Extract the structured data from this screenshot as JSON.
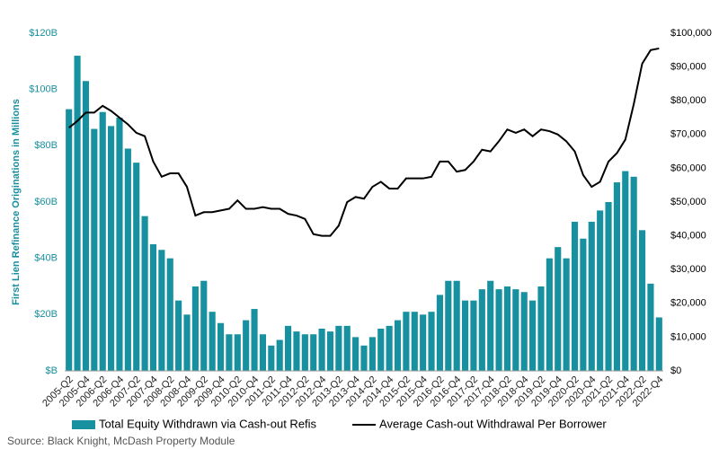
{
  "chart_data": {
    "type": "bar_line",
    "y_label": "First Lien Refinance Originations in Millions",
    "source": "Source: Black Knight, McDash Property Module",
    "categories": [
      "2005-Q2",
      null,
      "2005-Q4",
      null,
      "2006-Q2",
      null,
      "2006-Q4",
      null,
      "2007-Q2",
      null,
      "2007-Q4",
      null,
      "2008-Q2",
      null,
      "2008-Q4",
      null,
      "2009-Q2",
      null,
      "2009-Q4",
      null,
      "2010-Q2",
      null,
      "2010-Q4",
      null,
      "2011-Q2",
      null,
      "2011-Q4",
      null,
      "2012-Q2",
      null,
      "2012-Q4",
      null,
      "2013-Q2",
      null,
      "2013-Q4",
      null,
      "2014-Q2",
      null,
      "2014-Q4",
      null,
      "2015-Q2",
      null,
      "2015-Q4",
      null,
      "2016-Q2",
      null,
      "2016-Q4",
      null,
      "2017-Q2",
      null,
      "2017-Q4",
      null,
      "2018-Q2",
      null,
      "2018-Q4",
      null,
      "2019-Q2",
      null,
      "2019-Q4",
      null,
      "2020-Q2",
      null,
      "2020-Q4",
      null,
      "2021-Q2",
      null,
      "2021-Q4",
      null,
      "2022-Q2",
      null,
      "2022-Q4"
    ],
    "series": [
      {
        "name": "Total Equity Withdrawn via Cash-out Refis",
        "type": "bar",
        "color": "#17909f",
        "values": [
          93,
          112,
          103,
          86,
          92,
          87,
          90,
          79,
          74,
          55,
          45,
          43,
          40,
          25,
          20,
          30,
          32,
          21,
          17,
          13,
          13,
          18,
          22,
          13,
          9,
          11,
          16,
          14,
          13,
          13,
          15,
          14,
          16,
          16,
          12,
          9,
          12,
          15,
          16,
          18,
          21,
          21,
          20,
          21,
          27,
          32,
          32,
          25,
          25,
          29,
          32,
          29,
          30,
          29,
          28,
          25,
          30,
          40,
          44,
          40,
          53,
          47,
          53,
          57,
          60,
          67,
          71,
          69,
          50,
          31,
          19
        ]
      },
      {
        "name": "Average Cash-out Withdrawal Per Borrower",
        "type": "line",
        "axis": "y2",
        "color": "#000000",
        "values": [
          72000,
          74000,
          76500,
          76500,
          78500,
          77000,
          75000,
          73000,
          70500,
          69500,
          62000,
          57500,
          58500,
          58500,
          54500,
          46000,
          47000,
          47000,
          47500,
          48000,
          50500,
          48000,
          48000,
          48500,
          48000,
          48000,
          46500,
          46000,
          45000,
          40500,
          40000,
          40000,
          43000,
          50000,
          51500,
          51000,
          54500,
          56000,
          54000,
          54000,
          57000,
          57000,
          57000,
          57500,
          62000,
          62000,
          59000,
          59500,
          62000,
          65500,
          65000,
          68000,
          71500,
          70500,
          71500,
          69500,
          71500,
          71000,
          70000,
          68000,
          65000,
          58000,
          54500,
          56000,
          62000,
          64500,
          68500,
          79000,
          91000,
          95000,
          95500
        ]
      }
    ],
    "ylim": [
      0,
      120
    ],
    "yticks": [
      {
        "value": 0,
        "label": "$B"
      },
      {
        "value": 20,
        "label": "$20B"
      },
      {
        "value": 40,
        "label": "$40B"
      },
      {
        "value": 60,
        "label": "$60B"
      },
      {
        "value": 80,
        "label": "$80B"
      },
      {
        "value": 100,
        "label": "$100B"
      },
      {
        "value": 120,
        "label": "$120B"
      }
    ],
    "y2lim": [
      0,
      100000
    ],
    "y2ticks": [
      {
        "value": 0,
        "label": "$0"
      },
      {
        "value": 10000,
        "label": "$10,000"
      },
      {
        "value": 20000,
        "label": "$20,000"
      },
      {
        "value": 30000,
        "label": "$30,000"
      },
      {
        "value": 40000,
        "label": "$40,000"
      },
      {
        "value": 50000,
        "label": "$50,000"
      },
      {
        "value": 60000,
        "label": "$60,000"
      },
      {
        "value": 70000,
        "label": "$70,000"
      },
      {
        "value": 80000,
        "label": "$80,000"
      },
      {
        "value": 90000,
        "label": "$90,000"
      },
      {
        "value": 100000,
        "label": "$100,000"
      }
    ],
    "legend": "bottom"
  }
}
